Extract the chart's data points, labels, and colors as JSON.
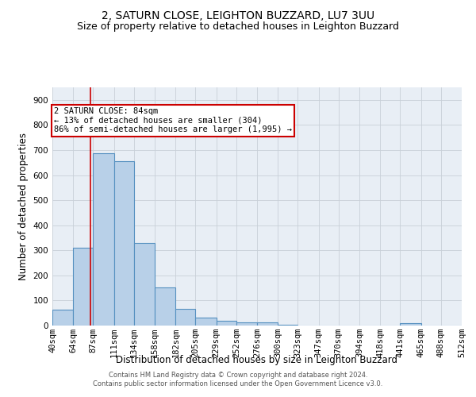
{
  "title_line1": "2, SATURN CLOSE, LEIGHTON BUZZARD, LU7 3UU",
  "title_line2": "Size of property relative to detached houses in Leighton Buzzard",
  "xlabel": "Distribution of detached houses by size in Leighton Buzzard",
  "ylabel": "Number of detached properties",
  "footer_line1": "Contains HM Land Registry data © Crown copyright and database right 2024.",
  "footer_line2": "Contains public sector information licensed under the Open Government Licence v3.0.",
  "annotation_line1": "2 SATURN CLOSE: 84sqm",
  "annotation_line2": "← 13% of detached houses are smaller (304)",
  "annotation_line3": "86% of semi-detached houses are larger (1,995) →",
  "bar_color": "#b8d0e8",
  "bar_edge_color": "#5590c0",
  "red_line_x": 84,
  "red_line_color": "#cc0000",
  "categories": [
    "40sqm",
    "64sqm",
    "87sqm",
    "111sqm",
    "134sqm",
    "158sqm",
    "182sqm",
    "205sqm",
    "229sqm",
    "252sqm",
    "276sqm",
    "300sqm",
    "323sqm",
    "347sqm",
    "370sqm",
    "394sqm",
    "418sqm",
    "441sqm",
    "465sqm",
    "488sqm",
    "512sqm"
  ],
  "bin_edges": [
    40,
    64,
    87,
    111,
    134,
    158,
    182,
    205,
    229,
    252,
    276,
    300,
    323,
    347,
    370,
    394,
    418,
    441,
    465,
    488,
    512
  ],
  "bar_heights": [
    63,
    310,
    686,
    655,
    330,
    152,
    65,
    33,
    20,
    12,
    12,
    4,
    0,
    0,
    0,
    0,
    0,
    9,
    0,
    0,
    0
  ],
  "ylim": [
    0,
    950
  ],
  "yticks": [
    0,
    100,
    200,
    300,
    400,
    500,
    600,
    700,
    800,
    900
  ],
  "background_color": "#ffffff",
  "grid_color": "#c8d0d8",
  "axes_bg_color": "#e8eef5",
  "title_fontsize": 10,
  "subtitle_fontsize": 9,
  "axis_label_fontsize": 8.5,
  "tick_fontsize": 7.5,
  "footer_fontsize": 6
}
